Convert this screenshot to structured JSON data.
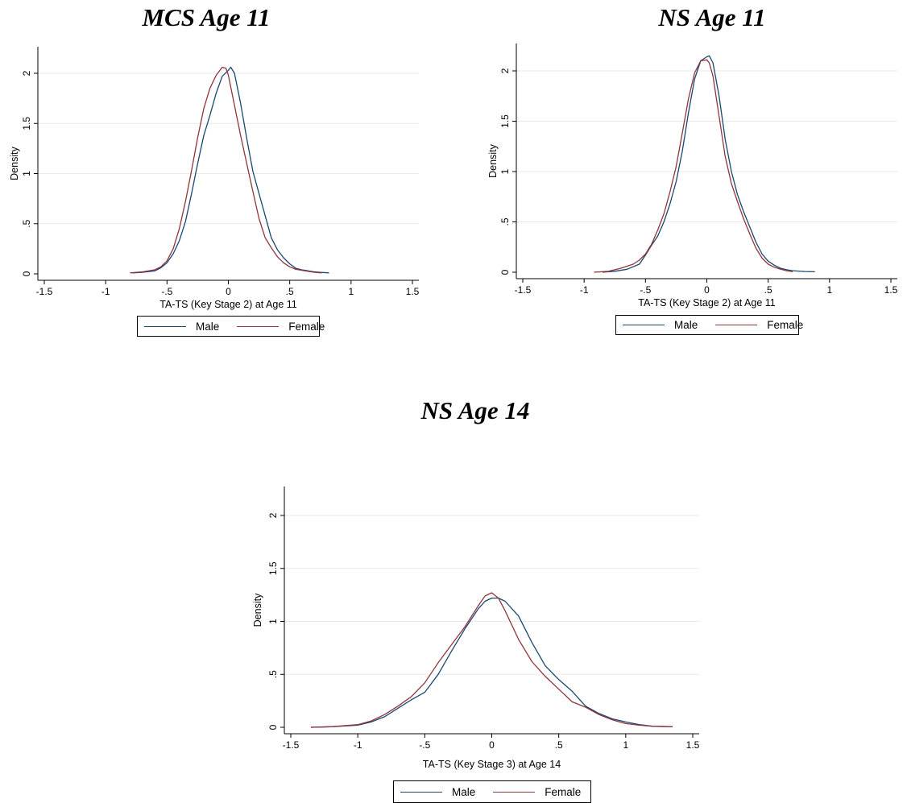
{
  "chart_data": [
    {
      "type": "line",
      "title": "MCS Age 11",
      "xlabel": "TA-TS (Key Stage 2) at Age 11",
      "ylabel": "Density",
      "xlim": [
        -1.5,
        1.5
      ],
      "ylim": [
        0,
        2.2
      ],
      "xticks": [
        "-1.5",
        "-1",
        "-.5",
        "0",
        ".5",
        "1",
        "1.5"
      ],
      "yticks": [
        "0",
        ".5",
        "1",
        "1.5",
        "2"
      ],
      "grid": true,
      "legend_position": "bottom",
      "series": [
        {
          "name": "Male",
          "color": "#1a476f",
          "x": [
            -0.78,
            -0.7,
            -0.6,
            -0.55,
            -0.5,
            -0.45,
            -0.4,
            -0.35,
            -0.3,
            -0.25,
            -0.2,
            -0.15,
            -0.1,
            -0.05,
            0.0,
            0.02,
            0.05,
            0.1,
            0.15,
            0.2,
            0.25,
            0.3,
            0.35,
            0.4,
            0.45,
            0.5,
            0.55,
            0.6,
            0.65,
            0.7,
            0.75,
            0.82
          ],
          "y": [
            0.01,
            0.015,
            0.03,
            0.06,
            0.11,
            0.2,
            0.33,
            0.52,
            0.8,
            1.1,
            1.38,
            1.58,
            1.8,
            1.97,
            2.03,
            2.06,
            2.0,
            1.7,
            1.35,
            1.02,
            0.8,
            0.58,
            0.36,
            0.24,
            0.16,
            0.1,
            0.055,
            0.04,
            0.03,
            0.02,
            0.015,
            0.01
          ]
        },
        {
          "name": "Female",
          "color": "#90353b",
          "x": [
            -0.8,
            -0.7,
            -0.6,
            -0.55,
            -0.5,
            -0.45,
            -0.4,
            -0.35,
            -0.3,
            -0.25,
            -0.2,
            -0.15,
            -0.1,
            -0.05,
            -0.02,
            0.0,
            0.05,
            0.1,
            0.15,
            0.2,
            0.25,
            0.3,
            0.35,
            0.4,
            0.45,
            0.5,
            0.55,
            0.6,
            0.65,
            0.7,
            0.76
          ],
          "y": [
            0.01,
            0.02,
            0.04,
            0.07,
            0.13,
            0.25,
            0.45,
            0.72,
            1.03,
            1.36,
            1.65,
            1.85,
            1.98,
            2.06,
            2.05,
            1.98,
            1.68,
            1.38,
            1.1,
            0.82,
            0.55,
            0.36,
            0.26,
            0.17,
            0.11,
            0.07,
            0.045,
            0.035,
            0.025,
            0.015,
            0.01
          ]
        }
      ]
    },
    {
      "type": "line",
      "title": "NS Age 11",
      "xlabel": "TA-TS (Key Stage 2) at Age 11",
      "ylabel": "Density",
      "xlim": [
        -1.5,
        1.5
      ],
      "ylim": [
        0,
        2.2
      ],
      "xticks": [
        "-1.5",
        "-1",
        "-.5",
        "0",
        ".5",
        "1",
        "1.5"
      ],
      "yticks": [
        "0",
        ".5",
        "1",
        "1.5",
        "2"
      ],
      "grid": true,
      "legend_position": "bottom",
      "series": [
        {
          "name": "Male",
          "color": "#1a476f",
          "x": [
            -0.85,
            -0.75,
            -0.65,
            -0.55,
            -0.5,
            -0.45,
            -0.4,
            -0.35,
            -0.3,
            -0.25,
            -0.2,
            -0.15,
            -0.1,
            -0.05,
            0.0,
            0.02,
            0.05,
            0.1,
            0.15,
            0.2,
            0.25,
            0.3,
            0.35,
            0.4,
            0.45,
            0.5,
            0.55,
            0.6,
            0.65,
            0.7,
            0.8,
            0.88
          ],
          "y": [
            0.0,
            0.01,
            0.03,
            0.08,
            0.17,
            0.27,
            0.36,
            0.5,
            0.68,
            0.9,
            1.2,
            1.58,
            1.92,
            2.1,
            2.14,
            2.15,
            2.08,
            1.75,
            1.32,
            1.0,
            0.77,
            0.6,
            0.45,
            0.3,
            0.18,
            0.11,
            0.07,
            0.04,
            0.025,
            0.015,
            0.007,
            0.005
          ]
        },
        {
          "name": "Female",
          "color": "#90353b",
          "x": [
            -0.92,
            -0.8,
            -0.7,
            -0.6,
            -0.55,
            -0.5,
            -0.45,
            -0.4,
            -0.35,
            -0.3,
            -0.25,
            -0.2,
            -0.15,
            -0.1,
            -0.05,
            0.0,
            0.02,
            0.05,
            0.1,
            0.15,
            0.2,
            0.25,
            0.3,
            0.35,
            0.4,
            0.45,
            0.5,
            0.55,
            0.6,
            0.65,
            0.7
          ],
          "y": [
            0.0,
            0.01,
            0.04,
            0.08,
            0.12,
            0.18,
            0.28,
            0.42,
            0.58,
            0.8,
            1.05,
            1.38,
            1.72,
            1.98,
            2.1,
            2.11,
            2.08,
            1.95,
            1.55,
            1.15,
            0.88,
            0.7,
            0.53,
            0.38,
            0.24,
            0.14,
            0.08,
            0.05,
            0.03,
            0.015,
            0.005
          ]
        }
      ]
    },
    {
      "type": "line",
      "title": "NS Age 14",
      "xlabel": "TA-TS (Key Stage 3) at Age 14",
      "ylabel": "Density",
      "xlim": [
        -1.5,
        1.5
      ],
      "ylim": [
        0,
        2.2
      ],
      "xticks": [
        "-1.5",
        "-1",
        "-.5",
        "0",
        ".5",
        "1",
        "1.5"
      ],
      "yticks": [
        "0",
        ".5",
        "1",
        "1.5",
        "2"
      ],
      "grid": true,
      "legend_position": "bottom",
      "series": [
        {
          "name": "Male",
          "color": "#1a476f",
          "x": [
            -1.35,
            -1.2,
            -1.0,
            -0.9,
            -0.8,
            -0.7,
            -0.6,
            -0.5,
            -0.4,
            -0.3,
            -0.2,
            -0.1,
            -0.05,
            0.0,
            0.05,
            0.1,
            0.2,
            0.3,
            0.4,
            0.5,
            0.6,
            0.7,
            0.8,
            0.9,
            1.0,
            1.1,
            1.2,
            1.35
          ],
          "y": [
            0.0,
            0.005,
            0.02,
            0.05,
            0.1,
            0.18,
            0.26,
            0.33,
            0.5,
            0.72,
            0.93,
            1.12,
            1.19,
            1.22,
            1.22,
            1.19,
            1.05,
            0.8,
            0.58,
            0.45,
            0.34,
            0.2,
            0.13,
            0.08,
            0.05,
            0.025,
            0.01,
            0.005
          ]
        },
        {
          "name": "Female",
          "color": "#90353b",
          "x": [
            -1.35,
            -1.2,
            -1.0,
            -0.9,
            -0.8,
            -0.7,
            -0.6,
            -0.5,
            -0.4,
            -0.3,
            -0.2,
            -0.1,
            -0.05,
            0.0,
            0.05,
            0.1,
            0.2,
            0.3,
            0.4,
            0.5,
            0.6,
            0.7,
            0.8,
            0.9,
            1.0,
            1.1,
            1.2,
            1.35
          ],
          "y": [
            0.0,
            0.005,
            0.025,
            0.06,
            0.12,
            0.2,
            0.29,
            0.42,
            0.61,
            0.78,
            0.95,
            1.15,
            1.24,
            1.27,
            1.22,
            1.1,
            0.83,
            0.62,
            0.48,
            0.36,
            0.24,
            0.19,
            0.12,
            0.07,
            0.035,
            0.02,
            0.01,
            0.005
          ]
        }
      ]
    }
  ]
}
